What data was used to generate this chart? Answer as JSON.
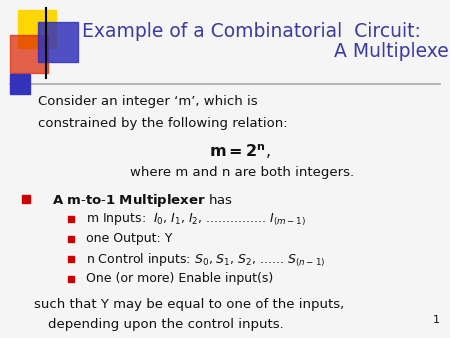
{
  "title_line1": "Example of a Combinatorial  Circuit:",
  "title_line2": "                                          A Multiplexer (MUX)",
  "title_color": "#3B3BA0",
  "bg_color": "#F5F5F5",
  "slide_number": "1",
  "body_font_size": 9.5,
  "title_font_size": 13.5,
  "text_color": "#111111",
  "bullet_color": "#CC0000",
  "line_color": "#AAAAAA",
  "deco_yellow": "#FFD700",
  "deco_red": "#DD2200",
  "deco_blue": "#3333BB"
}
